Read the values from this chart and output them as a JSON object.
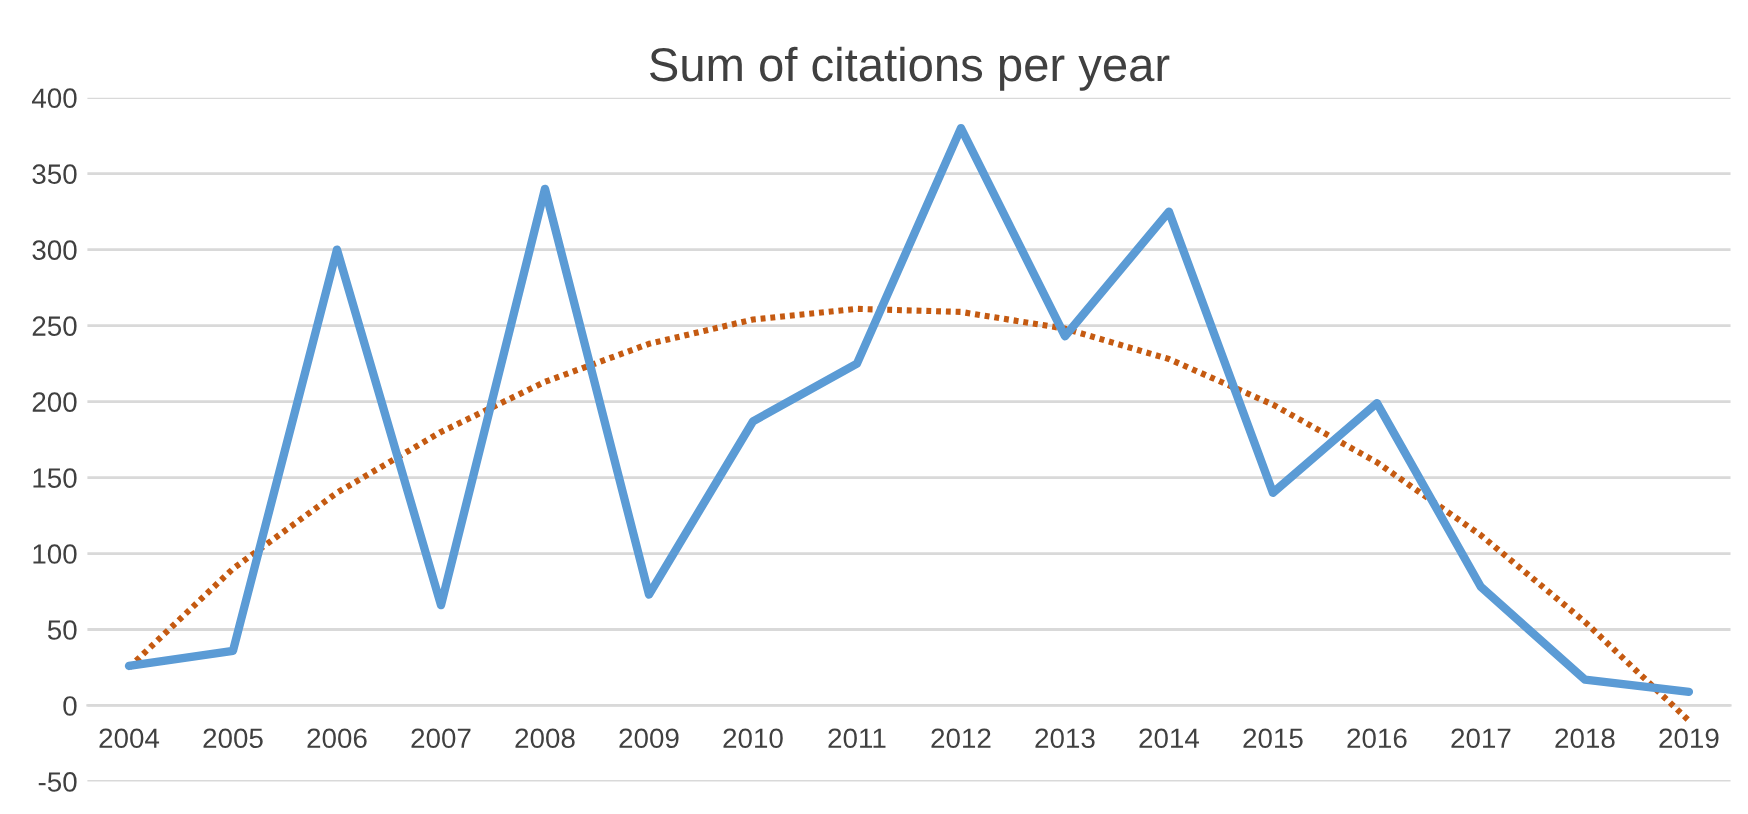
{
  "chart_data": {
    "type": "line",
    "title": "Sum of citations per year",
    "categories": [
      "2004",
      "2005",
      "2006",
      "2007",
      "2008",
      "2009",
      "2010",
      "2011",
      "2012",
      "2013",
      "2014",
      "2015",
      "2016",
      "2017",
      "2018",
      "2019"
    ],
    "series": [
      {
        "color": "#5b9bd5",
        "values": [
          26,
          36,
          300,
          66,
          340,
          73,
          187,
          225,
          380,
          243,
          325,
          140,
          199,
          78,
          17,
          9
        ],
        "line_style": "solid"
      },
      {
        "color": "#c55a11",
        "values": [
          25,
          90,
          140,
          180,
          213,
          238,
          254,
          261,
          259,
          248,
          228,
          198,
          160,
          112,
          55,
          -10
        ],
        "line_style": "dotted"
      }
    ],
    "ylim": [
      -50,
      400
    ],
    "yticks": [
      -50,
      0,
      50,
      100,
      150,
      200,
      250,
      300,
      350,
      400
    ],
    "grid": "y",
    "legend": false,
    "marker": "none"
  }
}
